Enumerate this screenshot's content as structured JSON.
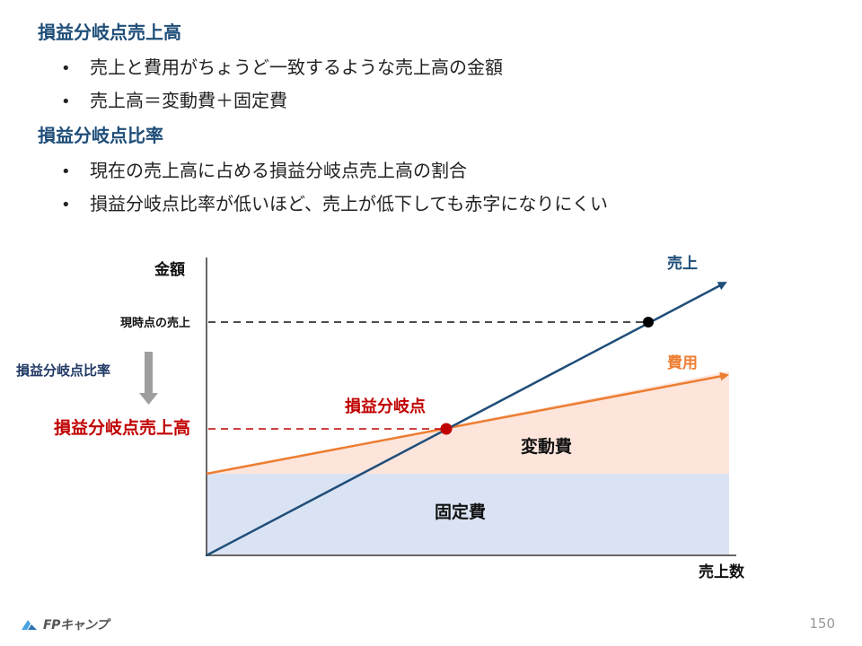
{
  "sections": [
    {
      "heading": "損益分岐点売上高",
      "bullets": [
        "売上と費用がちょうど一致するような売上高の金額",
        "売上高＝変動費＋固定費"
      ]
    },
    {
      "heading": "損益分岐点比率",
      "bullets": [
        "現在の売上高に占める損益分岐点売上高の割合",
        "損益分岐点比率が低いほど、売上が低下しても赤字になりにくい"
      ]
    }
  ],
  "diagram": {
    "y_axis_label": "金額",
    "x_axis_label": "売上数",
    "current_sales_label": "現時点の売上",
    "ratio_label": "損益分岐点比率",
    "bep_sales_label": "損益分岐点売上高",
    "sales_line_label": "売上",
    "cost_line_label": "費用",
    "bep_point_label": "損益分岐点",
    "variable_cost_label": "変動費",
    "fixed_cost_label": "固定費",
    "colors": {
      "sales": "#1f4e79",
      "cost": "#ed7d31",
      "bep_text": "#c00000",
      "variable_fill": "#fde5dc",
      "fixed_fill": "#dae3f3"
    }
  },
  "footer": {
    "logo_text": "FPキャンプ",
    "page_number": "150"
  }
}
